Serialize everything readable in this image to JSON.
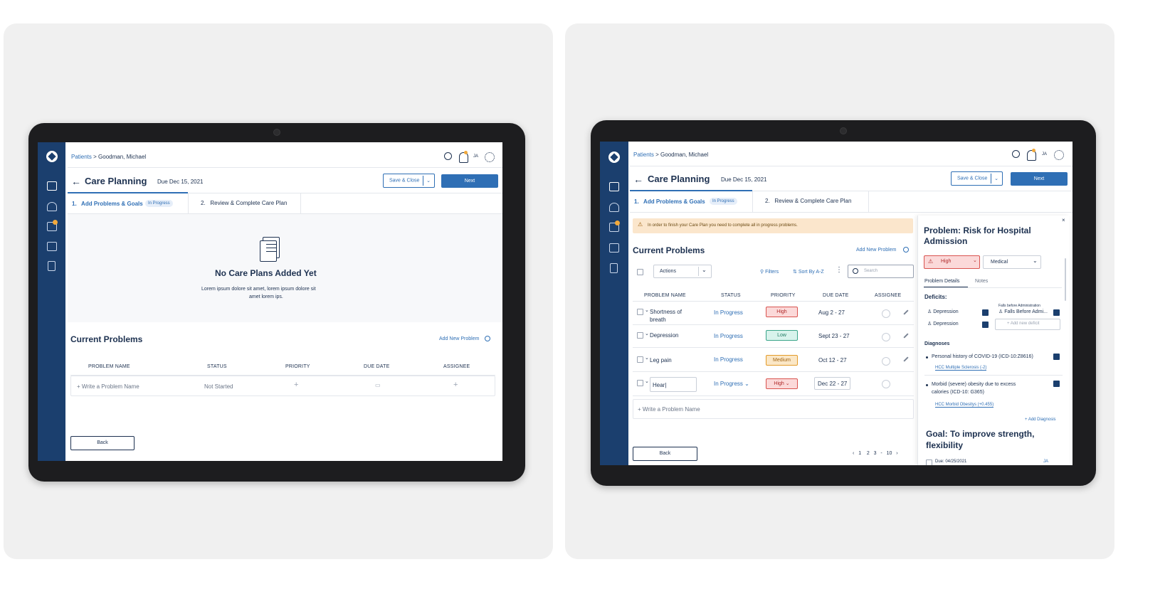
{
  "left": {
    "breadcrumb": {
      "parent": "Patients",
      "sep": ">",
      "current": "Goodman, Michael"
    },
    "initials": "JA",
    "page_title": "Care Planning",
    "due": "Due Dec 15, 2021",
    "save_close": "Save & Close",
    "next": "Next",
    "tabs": [
      {
        "num": "1.",
        "label": "Add Problems & Goals",
        "badge": "In Progress"
      },
      {
        "num": "2.",
        "label": "Review & Complete Care Plan"
      }
    ],
    "empty": {
      "title": "No Care Plans Added Yet",
      "line1": "Lorem ipsum dolore sit amet, lorem ipsum dolore sit",
      "line2": "amet lorem ips."
    },
    "current_problems": "Current Problems",
    "add_new_problem": "Add New Problem",
    "columns": [
      "PROBLEM NAME",
      "STATUS",
      "PRIORITY",
      "DUE DATE",
      "ASSIGNEE"
    ],
    "row": {
      "name": "+ Write a Problem Name",
      "status": "Not Started"
    },
    "back": "Back",
    "nav_badge": "3"
  },
  "right": {
    "breadcrumb": {
      "parent": "Patients",
      "sep": ">",
      "current": "Goodman, Michael"
    },
    "initials": "JA",
    "page_title": "Care Planning",
    "due": "Due Dec 15, 2021",
    "save_close": "Save & Close",
    "next": "Next",
    "tabs": [
      {
        "num": "1.",
        "label": "Add Problems & Goals",
        "badge": "In Progress"
      },
      {
        "num": "2.",
        "label": "Review & Complete Care Plan"
      }
    ],
    "alert": "In order to finish your Care Plan you need to complete all in progress problems.",
    "current_problems": "Current Problems",
    "add_new_problem": "Add New Problem",
    "actions": "Actions",
    "filters": "Filters",
    "sort": "Sort By A-Z",
    "search_placeholder": "Search",
    "columns": [
      "PROBLEM NAME",
      "STATUS",
      "PRIORITY",
      "DUE DATE",
      "ASSIGNEE"
    ],
    "rows": [
      {
        "name1": "Shortness of",
        "name2": "breath",
        "status": "In Progress",
        "priority": "High",
        "due": "Aug 2 - 27"
      },
      {
        "name1": "Depression",
        "name2": "",
        "status": "In Progress",
        "priority": "Low",
        "due": "Sept 23 - 27"
      },
      {
        "name1": "Leg pain",
        "name2": "",
        "status": "In Progress",
        "priority": "Medium",
        "due": "Oct 12 - 27"
      },
      {
        "name1": "Hear|",
        "name2": "",
        "status": "In Progress",
        "priority": "High",
        "due": "Dec 22 - 27"
      }
    ],
    "write_problem": "+ Write a Problem Name",
    "back": "Back",
    "pagination": [
      "1",
      "2",
      "3",
      "-",
      "10"
    ],
    "nav_badge": "3",
    "panel": {
      "title1": "Problem: Risk for Hospital",
      "title2": "Admission",
      "priority": "High",
      "type": "Medical",
      "tabs": [
        "Problem Details",
        "Notes"
      ],
      "deficits_label": "Deficits:",
      "deficits": [
        "Depression",
        "Depression"
      ],
      "tooltip": "Falls before Administration",
      "deficit_right": "Falls Before Admi...",
      "add_deficit": "+ Add new deficit",
      "diagnoses_label": "Diagnoses",
      "diag1": "Personal history of COVID-19 (ICD-10:Z8616)",
      "hcc1": "HCC Multiple Sclerosis (-2)",
      "diag2a": "Morbid (severe) obesity due to excess",
      "diag2b": "calories (ICD-10: G365)",
      "hcc2": "HCC Morbid Obesitys (+0.455)",
      "add_diagnosis": "+ Add Diagnosis",
      "goal1": "Goal: To improve strength,",
      "goal2": "flexibility",
      "goal_due": "Due: 04/25/2021",
      "goal_initials": "JA",
      "close": "×"
    }
  },
  "colors": {
    "navy": "#1b3f6e",
    "accent": "#2f6fb5",
    "warning": "#fbe6cc",
    "high": "#d9534f",
    "low": "#3aa58a",
    "medium": "#e39b2a"
  }
}
